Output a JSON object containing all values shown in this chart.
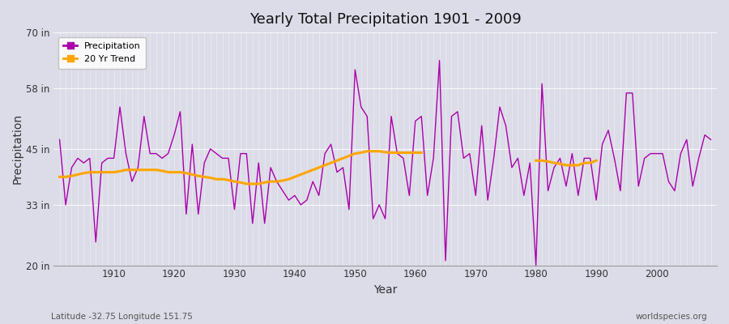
{
  "title": "Yearly Total Precipitation 1901 - 2009",
  "xlabel": "Year",
  "ylabel": "Precipitation",
  "subtitle_left": "Latitude -32.75 Longitude 151.75",
  "subtitle_right": "worldspecies.org",
  "legend_labels": [
    "Precipitation",
    "20 Yr Trend"
  ],
  "precip_color": "#AA00AA",
  "trend_color": "#FFA500",
  "bg_color": "#dcdce8",
  "plot_bg_color": "#dcdce8",
  "ylim": [
    20,
    70
  ],
  "yticks": [
    20,
    33,
    45,
    58,
    70
  ],
  "ytick_labels": [
    "20 in",
    "33 in",
    "45 in",
    "58 in",
    "70 in"
  ],
  "years": [
    1901,
    1902,
    1903,
    1904,
    1905,
    1906,
    1907,
    1908,
    1909,
    1910,
    1911,
    1912,
    1913,
    1914,
    1915,
    1916,
    1917,
    1918,
    1919,
    1920,
    1921,
    1922,
    1923,
    1924,
    1925,
    1926,
    1927,
    1928,
    1929,
    1930,
    1931,
    1932,
    1933,
    1934,
    1935,
    1936,
    1937,
    1938,
    1939,
    1940,
    1941,
    1942,
    1943,
    1944,
    1945,
    1946,
    1947,
    1948,
    1949,
    1950,
    1951,
    1952,
    1953,
    1954,
    1955,
    1956,
    1957,
    1958,
    1959,
    1960,
    1961,
    1962,
    1963,
    1964,
    1965,
    1966,
    1967,
    1968,
    1969,
    1970,
    1971,
    1972,
    1973,
    1974,
    1975,
    1976,
    1977,
    1978,
    1979,
    1980,
    1981,
    1982,
    1983,
    1984,
    1985,
    1986,
    1987,
    1988,
    1989,
    1990,
    1991,
    1992,
    1993,
    1994,
    1995,
    1996,
    1997,
    1998,
    1999,
    2000,
    2001,
    2002,
    2003,
    2004,
    2005,
    2006,
    2007,
    2008,
    2009
  ],
  "precipitation": [
    47,
    33,
    41,
    43,
    42,
    43,
    25,
    42,
    43,
    43,
    54,
    44,
    38,
    41,
    52,
    44,
    44,
    43,
    44,
    48,
    53,
    31,
    46,
    31,
    42,
    45,
    44,
    43,
    43,
    32,
    44,
    44,
    29,
    42,
    29,
    41,
    38,
    36,
    34,
    35,
    33,
    34,
    38,
    35,
    44,
    46,
    40,
    41,
    32,
    62,
    54,
    52,
    30,
    33,
    30,
    52,
    44,
    43,
    35,
    51,
    52,
    35,
    43,
    64,
    21,
    52,
    53,
    43,
    44,
    35,
    50,
    34,
    43,
    54,
    50,
    41,
    43,
    35,
    42,
    20,
    59,
    36,
    41,
    43,
    37,
    44,
    35,
    43,
    43,
    34,
    46,
    49,
    43,
    36,
    57,
    57,
    37,
    43,
    44,
    44,
    44,
    38,
    36,
    44,
    47,
    37,
    43,
    48,
    47
  ],
  "trend_seg1_years": [
    1901,
    1902,
    1903,
    1904,
    1905,
    1906,
    1907,
    1908,
    1909,
    1910,
    1911,
    1912,
    1913,
    1914,
    1915,
    1916,
    1917,
    1918,
    1919,
    1920,
    1921,
    1922,
    1923,
    1924,
    1925,
    1926,
    1927,
    1928,
    1929,
    1930,
    1931,
    1932,
    1933,
    1934,
    1935,
    1936,
    1937,
    1938,
    1939,
    1940,
    1941,
    1942,
    1943,
    1944,
    1945,
    1946,
    1947,
    1948,
    1949,
    1950,
    1951,
    1952,
    1953,
    1954,
    1955,
    1956,
    1957,
    1958,
    1959,
    1960,
    1961
  ],
  "trend_seg1_values": [
    39.0,
    39.0,
    39.2,
    39.5,
    39.8,
    40.0,
    40.0,
    40.0,
    40.0,
    40.0,
    40.2,
    40.5,
    40.5,
    40.5,
    40.5,
    40.5,
    40.5,
    40.3,
    40.0,
    40.0,
    40.0,
    39.8,
    39.5,
    39.2,
    39.0,
    38.8,
    38.5,
    38.5,
    38.3,
    38.0,
    37.8,
    37.5,
    37.5,
    37.5,
    37.8,
    38.0,
    38.0,
    38.2,
    38.5,
    39.0,
    39.5,
    40.0,
    40.5,
    41.0,
    41.5,
    42.0,
    42.5,
    43.0,
    43.5,
    44.0,
    44.2,
    44.5,
    44.5,
    44.5,
    44.3,
    44.2,
    44.2,
    44.2,
    44.2,
    44.2,
    44.2
  ],
  "trend_seg2_years": [
    1980,
    1981,
    1982,
    1983,
    1984,
    1985,
    1986,
    1987,
    1988,
    1989,
    1990
  ],
  "trend_seg2_values": [
    42.5,
    42.5,
    42.3,
    42.0,
    41.8,
    41.5,
    41.5,
    41.5,
    42.0,
    42.0,
    42.5
  ]
}
